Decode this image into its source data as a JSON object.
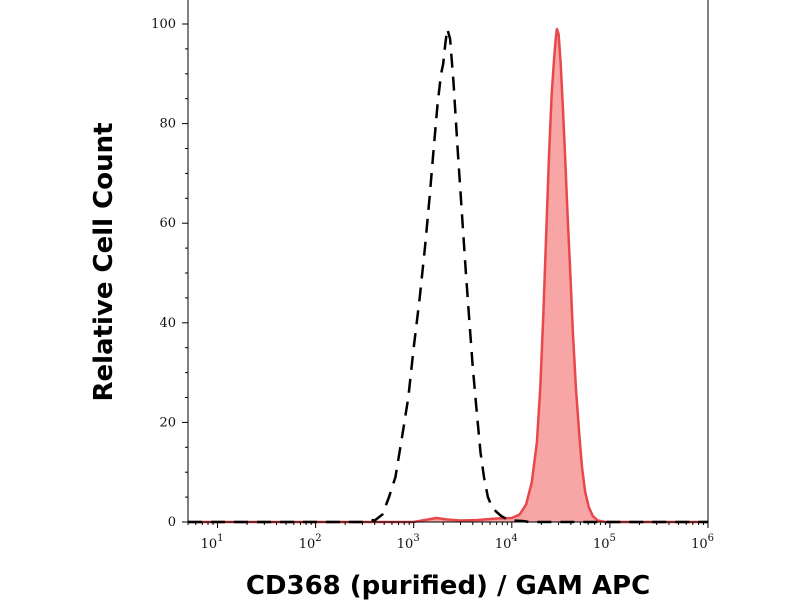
{
  "chart_data": {
    "type": "area",
    "title": "",
    "xlabel": "CD368 (purified) / GAM APC",
    "ylabel": "Relative Cell Count",
    "x_scale": "log",
    "xlim": [
      5,
      1000000
    ],
    "ylim": [
      0,
      100
    ],
    "x_ticks": [
      {
        "base": "10",
        "exp": "1",
        "value": 10
      },
      {
        "base": "10",
        "exp": "2",
        "value": 100
      },
      {
        "base": "10",
        "exp": "3",
        "value": 1000
      },
      {
        "base": "10",
        "exp": "4",
        "value": 10000
      },
      {
        "base": "10",
        "exp": "5",
        "value": 100000
      },
      {
        "base": "10",
        "exp": "6",
        "value": 1000000
      }
    ],
    "y_ticks": [
      "0",
      "20",
      "40",
      "60",
      "80",
      "100"
    ],
    "grid": false,
    "series": [
      {
        "style": "dashed",
        "color": "#000000",
        "fill": "none",
        "points": [
          [
            5,
            0
          ],
          [
            300,
            0
          ],
          [
            350,
            0.5
          ],
          [
            400,
            0.3
          ],
          [
            480,
            1.5
          ],
          [
            560,
            5
          ],
          [
            650,
            9
          ],
          [
            760,
            17
          ],
          [
            880,
            25
          ],
          [
            1000,
            35
          ],
          [
            1150,
            45
          ],
          [
            1300,
            55
          ],
          [
            1450,
            65
          ],
          [
            1600,
            75
          ],
          [
            1750,
            84
          ],
          [
            1900,
            90
          ],
          [
            2000,
            92
          ],
          [
            2100,
            96
          ],
          [
            2200,
            99
          ],
          [
            2350,
            97
          ],
          [
            2550,
            88
          ],
          [
            2800,
            75
          ],
          [
            3100,
            62
          ],
          [
            3400,
            50
          ],
          [
            3700,
            40
          ],
          [
            4000,
            31
          ],
          [
            4400,
            22
          ],
          [
            4800,
            14
          ],
          [
            5200,
            9
          ],
          [
            5700,
            5
          ],
          [
            6300,
            3
          ],
          [
            7000,
            2
          ],
          [
            7800,
            1.2
          ],
          [
            8800,
            0.6
          ],
          [
            10000,
            0.3
          ],
          [
            13000,
            0.2
          ],
          [
            15000,
            0
          ],
          [
            1000000,
            0
          ]
        ]
      },
      {
        "style": "filled",
        "color": "#e8484b",
        "fill": "#f8a5a6",
        "points": [
          [
            5,
            0
          ],
          [
            1000,
            0
          ],
          [
            1300,
            0.4
          ],
          [
            1700,
            0.8
          ],
          [
            2200,
            0.5
          ],
          [
            3000,
            0.3
          ],
          [
            4500,
            0.4
          ],
          [
            7000,
            0.7
          ],
          [
            10000,
            0.8
          ],
          [
            12000,
            1.5
          ],
          [
            14000,
            3.5
          ],
          [
            16000,
            8
          ],
          [
            18000,
            16
          ],
          [
            19500,
            27
          ],
          [
            21000,
            42
          ],
          [
            22500,
            59
          ],
          [
            24000,
            74
          ],
          [
            25500,
            86
          ],
          [
            27000,
            93
          ],
          [
            28000,
            97
          ],
          [
            28800,
            99
          ],
          [
            30000,
            98
          ],
          [
            31500,
            92
          ],
          [
            33000,
            84
          ],
          [
            35000,
            73
          ],
          [
            37000,
            62
          ],
          [
            39500,
            50
          ],
          [
            42000,
            38
          ],
          [
            45000,
            27
          ],
          [
            48500,
            18
          ],
          [
            52000,
            11
          ],
          [
            56000,
            6
          ],
          [
            61000,
            3
          ],
          [
            67000,
            1.2
          ],
          [
            75000,
            0.3
          ],
          [
            90000,
            0
          ],
          [
            1000000,
            0
          ]
        ]
      }
    ]
  }
}
